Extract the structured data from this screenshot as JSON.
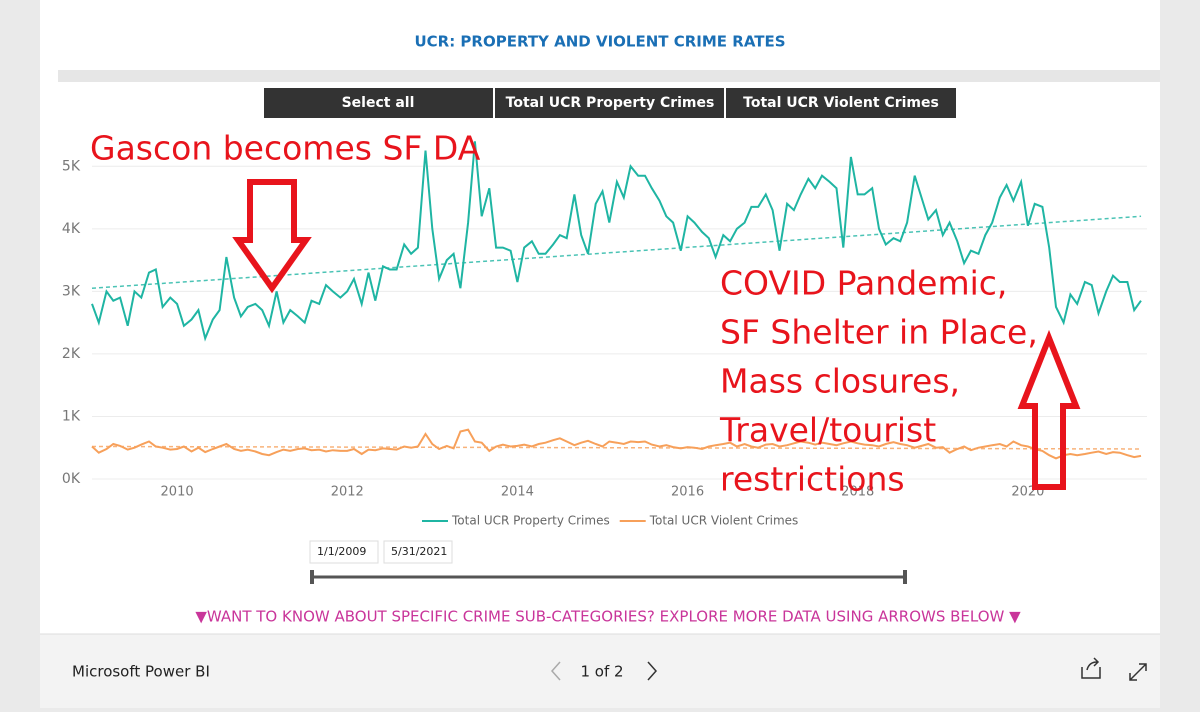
{
  "header": {
    "title": "UCR: PROPERTY AND VIOLENT CRIME RATES"
  },
  "buttons": [
    "Select all",
    "Total UCR Property Crimes",
    "Total UCR Violent Crimes"
  ],
  "chart_data": {
    "type": "line",
    "x": [
      2009,
      2009.08,
      2009.17,
      2009.25,
      2009.33,
      2009.42,
      2009.5,
      2009.58,
      2009.67,
      2009.75,
      2009.83,
      2009.92,
      2010,
      2010.08,
      2010.17,
      2010.25,
      2010.33,
      2010.42,
      2010.5,
      2010.58,
      2010.67,
      2010.75,
      2010.83,
      2010.92,
      2011,
      2011.08,
      2011.17,
      2011.25,
      2011.33,
      2011.42,
      2011.5,
      2011.58,
      2011.67,
      2011.75,
      2011.83,
      2011.92,
      2012,
      2012.08,
      2012.17,
      2012.25,
      2012.33,
      2012.42,
      2012.5,
      2012.58,
      2012.67,
      2012.75,
      2012.83,
      2012.92,
      2013,
      2013.08,
      2013.17,
      2013.25,
      2013.33,
      2013.42,
      2013.5,
      2013.58,
      2013.67,
      2013.75,
      2013.83,
      2013.92,
      2014,
      2014.08,
      2014.17,
      2014.25,
      2014.33,
      2014.42,
      2014.5,
      2014.58,
      2014.67,
      2014.75,
      2014.83,
      2014.92,
      2015,
      2015.08,
      2015.17,
      2015.25,
      2015.33,
      2015.42,
      2015.5,
      2015.58,
      2015.67,
      2015.75,
      2015.83,
      2015.92,
      2016,
      2016.08,
      2016.17,
      2016.25,
      2016.33,
      2016.42,
      2016.5,
      2016.58,
      2016.67,
      2016.75,
      2016.83,
      2016.92,
      2017,
      2017.08,
      2017.17,
      2017.25,
      2017.33,
      2017.42,
      2017.5,
      2017.58,
      2017.67,
      2017.75,
      2017.83,
      2017.92,
      2018,
      2018.08,
      2018.17,
      2018.25,
      2018.33,
      2018.42,
      2018.5,
      2018.58,
      2018.67,
      2018.75,
      2018.83,
      2018.92,
      2019,
      2019.08,
      2019.17,
      2019.25,
      2019.33,
      2019.42,
      2019.5,
      2019.58,
      2019.67,
      2019.75,
      2019.83,
      2019.92,
      2020,
      2020.08,
      2020.17,
      2020.25,
      2020.33,
      2020.42,
      2020.5,
      2020.58,
      2020.67,
      2020.75,
      2020.83,
      2020.92,
      2021,
      2021.08,
      2021.17,
      2021.25,
      2021.33
    ],
    "series": [
      {
        "name": "Total UCR Property Crimes",
        "color": "#1fb5a3",
        "trend": [
          3050,
          4200
        ],
        "values": [
          2800,
          2500,
          3000,
          2850,
          2900,
          2450,
          3000,
          2900,
          3300,
          3350,
          2750,
          2900,
          2800,
          2450,
          2550,
          2700,
          2250,
          2550,
          2700,
          3550,
          2900,
          2600,
          2750,
          2800,
          2700,
          2450,
          3000,
          2500,
          2700,
          2600,
          2500,
          2850,
          2800,
          3100,
          3000,
          2900,
          3000,
          3200,
          2800,
          3300,
          2850,
          3400,
          3350,
          3350,
          3750,
          3600,
          3700,
          5250,
          4000,
          3200,
          3500,
          3600,
          3050,
          4100,
          5400,
          4200,
          4650,
          3700,
          3700,
          3650,
          3150,
          3700,
          3800,
          3600,
          3600,
          3750,
          3900,
          3850,
          4550,
          3900,
          3600,
          4400,
          4600,
          4100,
          4750,
          4500,
          5000,
          4850,
          4850,
          4650,
          4450,
          4200,
          4100,
          3650,
          4200,
          4100,
          3950,
          3850,
          3550,
          3900,
          3800,
          4000,
          4100,
          4350,
          4350,
          4550,
          4300,
          3650,
          4400,
          4300,
          4550,
          4800,
          4650,
          4850,
          4750,
          4650,
          3700,
          5150,
          4550,
          4550,
          4650,
          4000,
          3750,
          3850,
          3800,
          4100,
          4850,
          4500,
          4150,
          4300,
          3900,
          4100,
          3800,
          3450,
          3650,
          3600,
          3900,
          4100,
          4500,
          4700,
          4450,
          4750,
          4050,
          4400,
          4350,
          3700,
          2750,
          2500,
          2950,
          2800,
          3150,
          3100,
          2650,
          3000,
          3250,
          3150,
          3150,
          2700,
          2850
        ]
      },
      {
        "name": "Total UCR Violent Crimes",
        "color": "#f7a05a",
        "trend": [
          520,
          480
        ],
        "values": [
          520,
          420,
          480,
          560,
          530,
          470,
          500,
          550,
          600,
          520,
          500,
          470,
          480,
          520,
          440,
          500,
          430,
          480,
          520,
          560,
          480,
          450,
          470,
          440,
          400,
          380,
          430,
          470,
          450,
          480,
          490,
          460,
          470,
          440,
          460,
          450,
          450,
          480,
          400,
          470,
          460,
          490,
          480,
          470,
          520,
          500,
          520,
          720,
          560,
          480,
          530,
          490,
          760,
          790,
          600,
          580,
          450,
          520,
          550,
          520,
          530,
          550,
          520,
          560,
          580,
          620,
          650,
          600,
          540,
          580,
          610,
          560,
          520,
          600,
          580,
          560,
          600,
          590,
          600,
          550,
          520,
          540,
          510,
          490,
          510,
          500,
          480,
          520,
          540,
          560,
          580,
          520,
          560,
          520,
          500,
          550,
          560,
          520,
          540,
          570,
          600,
          580,
          550,
          580,
          560,
          540,
          570,
          600,
          570,
          550,
          540,
          520,
          560,
          590,
          560,
          540,
          500,
          530,
          560,
          500,
          510,
          420,
          480,
          520,
          460,
          500,
          520,
          540,
          560,
          520,
          600,
          540,
          520,
          480,
          450,
          380,
          330,
          380,
          400,
          380,
          400,
          420,
          440,
          400,
          430,
          420,
          380,
          350,
          370
        ]
      }
    ],
    "xlim": [
      2009,
      2021.4
    ],
    "xticks": [
      2010,
      2012,
      2014,
      2016,
      2018,
      2020
    ],
    "ylim": [
      0,
      5500
    ],
    "yticks": [
      {
        "value": 0,
        "label": "0K"
      },
      {
        "value": 1000,
        "label": "1K"
      },
      {
        "value": 2000,
        "label": "2K"
      },
      {
        "value": 3000,
        "label": "3K"
      },
      {
        "value": 4000,
        "label": "4K"
      },
      {
        "value": 5000,
        "label": "5K"
      }
    ],
    "grid": true
  },
  "annotations": {
    "gascon": "Gascon becomes SF DA",
    "covid": [
      "COVID Pandemic,",
      "SF Shelter in Place,",
      "Mass closures,",
      "Travel/tourist",
      "restrictions"
    ]
  },
  "slicer": {
    "start": "1/1/2009",
    "end": "5/31/2021"
  },
  "footer_note": "▼WANT TO KNOW ABOUT SPECIFIC CRIME SUB-CATEGORIES? EXPLORE MORE DATA USING ARROWS BELOW ▼",
  "bottom_bar": {
    "brand": "Microsoft Power BI",
    "page": "1 of 2"
  }
}
